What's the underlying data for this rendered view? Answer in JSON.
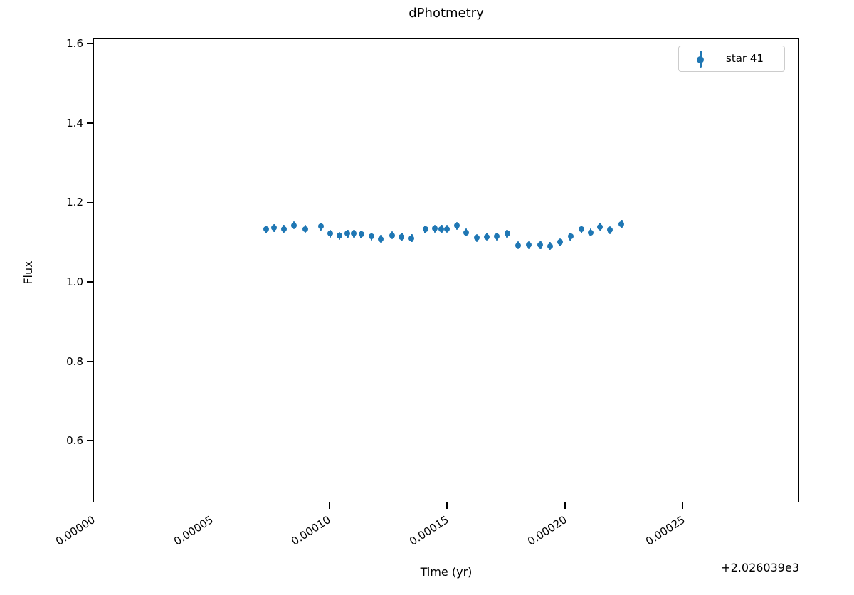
{
  "title": "dPhotmetry",
  "axes": {
    "xlabel": "Time (yr)",
    "ylabel": "Flux",
    "x_offset_text": "+2.026039e3"
  },
  "legend": {
    "label": "star 41",
    "position": "upper right"
  },
  "colors": {
    "marker": "#1f77b4",
    "axis": "#000000",
    "legend_border": "#cccccc"
  },
  "chart_data": {
    "type": "scatter",
    "title": "dPhotmetry",
    "xlabel": "Time (yr)",
    "ylabel": "Flux",
    "x_offset": "+2.026039e3",
    "grid": false,
    "legend_position": "upper right",
    "xlim": [
      0.0,
      0.000299
    ],
    "ylim": [
      0.444,
      1.613
    ],
    "x_tick_values": [
      0.0,
      5e-05,
      0.0001,
      0.00015,
      0.0002,
      0.00025
    ],
    "x_tick_labels": [
      "0.00000",
      "0.00005",
      "0.00010",
      "0.00015",
      "0.00020",
      "0.00025"
    ],
    "y_tick_values": [
      1.6,
      1.4,
      1.2,
      1.0,
      0.8,
      0.6
    ],
    "y_tick_labels": [
      "1.6",
      "1.4",
      "1.2",
      "1.0",
      "0.8",
      "0.6"
    ],
    "series": [
      {
        "name": "star 41",
        "marker": "point-with-errorbar",
        "color": "#1f77b4",
        "y_err": 0.01,
        "x": [
          7.33e-05,
          7.68e-05,
          8.08e-05,
          8.52e-05,
          8.99e-05,
          9.65e-05,
          0.0001005,
          0.0001045,
          0.0001079,
          0.0001106,
          0.0001137,
          0.000118,
          0.000122,
          0.0001268,
          0.0001308,
          0.000135,
          0.0001408,
          0.0001449,
          0.0001477,
          0.0001499,
          0.0001542,
          0.0001581,
          0.0001627,
          0.000167,
          0.0001712,
          0.0001755,
          0.0001802,
          0.0001848,
          0.0001896,
          0.0001936,
          0.0001979,
          0.0002023,
          0.0002069,
          0.0002109,
          0.0002149,
          0.000219,
          0.000224
        ],
        "y": [
          1.132,
          1.136,
          1.133,
          1.142,
          1.133,
          1.139,
          1.121,
          1.116,
          1.121,
          1.121,
          1.12,
          1.114,
          1.108,
          1.117,
          1.113,
          1.11,
          1.132,
          1.134,
          1.133,
          1.133,
          1.141,
          1.124,
          1.111,
          1.113,
          1.114,
          1.121,
          1.092,
          1.093,
          1.093,
          1.09,
          1.1,
          1.114,
          1.132,
          1.124,
          1.138,
          1.13,
          1.146
        ]
      }
    ]
  }
}
